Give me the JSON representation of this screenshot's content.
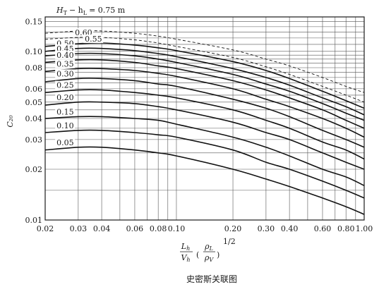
{
  "caption": "史密斯关联图",
  "chart_data": {
    "type": "line",
    "title": "",
    "xlabel": "",
    "ylabel": "C₂₀",
    "x_scale": "log",
    "y_scale": "log",
    "xlim": [
      0.02,
      1.0
    ],
    "ylim": [
      0.01,
      0.16
    ],
    "grid": true,
    "x_axis_formula": {
      "num_top": "L",
      "num_top_sub": "h",
      "den_bottom": "V",
      "den_bottom_sub": "h",
      "rho_top": "ρ",
      "rho_top_sub": "L",
      "rho_bottom": "ρ",
      "rho_bottom_sub": "V",
      "exponent": "1/2"
    },
    "x_ticks": [
      {
        "value": 0.02,
        "label": "0.02"
      },
      {
        "value": 0.03,
        "label": "0.03"
      },
      {
        "value": 0.04,
        "label": "0.04"
      },
      {
        "value": 0.06,
        "label": "0.06"
      },
      {
        "value": 0.08,
        "label": "0.08"
      },
      {
        "value": 0.1,
        "label": "0.10"
      },
      {
        "value": 0.2,
        "label": "0.20"
      },
      {
        "value": 0.3,
        "label": "0.30"
      },
      {
        "value": 0.4,
        "label": "0.40"
      },
      {
        "value": 0.6,
        "label": "0.60"
      },
      {
        "value": 0.8,
        "label": "0.80"
      },
      {
        "value": 1.0,
        "label": "1.00"
      }
    ],
    "y_ticks": [
      {
        "value": 0.01,
        "label": "0.01"
      },
      {
        "value": 0.02,
        "label": "0.02"
      },
      {
        "value": 0.03,
        "label": "0.03"
      },
      {
        "value": 0.04,
        "label": "0.04"
      },
      {
        "value": 0.05,
        "label": "0.05"
      },
      {
        "value": 0.06,
        "label": "0.06"
      },
      {
        "value": 0.08,
        "label": "0.08"
      },
      {
        "value": 0.1,
        "label": "0.10"
      },
      {
        "value": 0.15,
        "label": "0.15"
      }
    ],
    "legend_header": "H",
    "legend_header_sub": "T",
    "legend_header_minus": "− h",
    "legend_header_sub2": "L",
    "legend_header_rest": "= 0.75 m",
    "series": [
      {
        "name": "0.75 m",
        "label": "",
        "dashed": true,
        "points": [
          [
            0.02,
            0.128
          ],
          [
            0.03,
            0.132
          ],
          [
            0.04,
            0.132
          ],
          [
            0.06,
            0.128
          ],
          [
            0.08,
            0.123
          ],
          [
            0.1,
            0.118
          ],
          [
            0.2,
            0.102
          ],
          [
            0.3,
            0.09
          ],
          [
            0.4,
            0.082
          ],
          [
            0.6,
            0.07
          ],
          [
            0.8,
            0.062
          ],
          [
            1.0,
            0.057
          ]
        ]
      },
      {
        "name": "0.60",
        "label": "0.60",
        "dashed": true,
        "points": [
          [
            0.02,
            0.118
          ],
          [
            0.03,
            0.121
          ],
          [
            0.04,
            0.121
          ],
          [
            0.06,
            0.117
          ],
          [
            0.08,
            0.112
          ],
          [
            0.1,
            0.107
          ],
          [
            0.2,
            0.092
          ],
          [
            0.3,
            0.081
          ],
          [
            0.4,
            0.073
          ],
          [
            0.6,
            0.062
          ],
          [
            0.8,
            0.055
          ],
          [
            1.0,
            0.05
          ]
        ]
      },
      {
        "name": "0.55",
        "label": "0.55",
        "dashed": false,
        "points": [
          [
            0.02,
            0.107
          ],
          [
            0.03,
            0.111
          ],
          [
            0.04,
            0.112
          ],
          [
            0.06,
            0.109
          ],
          [
            0.08,
            0.105
          ],
          [
            0.1,
            0.101
          ],
          [
            0.2,
            0.087
          ],
          [
            0.3,
            0.077
          ],
          [
            0.4,
            0.069
          ],
          [
            0.6,
            0.058
          ],
          [
            0.8,
            0.051
          ],
          [
            1.0,
            0.046
          ]
        ]
      },
      {
        "name": "0.50",
        "label": "0.50",
        "dashed": false,
        "points": [
          [
            0.02,
            0.1
          ],
          [
            0.03,
            0.104
          ],
          [
            0.04,
            0.104
          ],
          [
            0.06,
            0.101
          ],
          [
            0.08,
            0.097
          ],
          [
            0.1,
            0.093
          ],
          [
            0.2,
            0.079
          ],
          [
            0.3,
            0.07
          ],
          [
            0.4,
            0.063
          ],
          [
            0.6,
            0.053
          ],
          [
            0.8,
            0.047
          ],
          [
            1.0,
            0.042
          ]
        ]
      },
      {
        "name": "0.45",
        "label": "0.45",
        "dashed": false,
        "points": [
          [
            0.02,
            0.094
          ],
          [
            0.03,
            0.097
          ],
          [
            0.04,
            0.097
          ],
          [
            0.06,
            0.094
          ],
          [
            0.08,
            0.09
          ],
          [
            0.1,
            0.086
          ],
          [
            0.2,
            0.073
          ],
          [
            0.3,
            0.064
          ],
          [
            0.4,
            0.058
          ],
          [
            0.6,
            0.049
          ],
          [
            0.8,
            0.043
          ],
          [
            1.0,
            0.039
          ]
        ]
      },
      {
        "name": "0.40",
        "label": "0.40",
        "dashed": false,
        "points": [
          [
            0.02,
            0.086
          ],
          [
            0.03,
            0.089
          ],
          [
            0.04,
            0.089
          ],
          [
            0.06,
            0.086
          ],
          [
            0.08,
            0.082
          ],
          [
            0.1,
            0.079
          ],
          [
            0.2,
            0.067
          ],
          [
            0.3,
            0.059
          ],
          [
            0.4,
            0.053
          ],
          [
            0.6,
            0.045
          ],
          [
            0.8,
            0.039
          ],
          [
            1.0,
            0.035
          ]
        ]
      },
      {
        "name": "0.35",
        "label": "0.35",
        "dashed": false,
        "points": [
          [
            0.02,
            0.076
          ],
          [
            0.03,
            0.079
          ],
          [
            0.04,
            0.079
          ],
          [
            0.06,
            0.077
          ],
          [
            0.08,
            0.074
          ],
          [
            0.1,
            0.071
          ],
          [
            0.2,
            0.06
          ],
          [
            0.3,
            0.052
          ],
          [
            0.4,
            0.047
          ],
          [
            0.6,
            0.04
          ],
          [
            0.8,
            0.035
          ],
          [
            1.0,
            0.031
          ]
        ]
      },
      {
        "name": "0.30",
        "label": "0.30",
        "dashed": false,
        "points": [
          [
            0.02,
            0.066
          ],
          [
            0.03,
            0.069
          ],
          [
            0.04,
            0.069
          ],
          [
            0.06,
            0.067
          ],
          [
            0.08,
            0.064
          ],
          [
            0.1,
            0.062
          ],
          [
            0.2,
            0.052
          ],
          [
            0.3,
            0.046
          ],
          [
            0.4,
            0.041
          ],
          [
            0.6,
            0.034
          ],
          [
            0.8,
            0.03
          ],
          [
            1.0,
            0.027
          ]
        ]
      },
      {
        "name": "0.25",
        "label": "0.25",
        "dashed": false,
        "points": [
          [
            0.02,
            0.057
          ],
          [
            0.03,
            0.059
          ],
          [
            0.04,
            0.059
          ],
          [
            0.06,
            0.057
          ],
          [
            0.08,
            0.055
          ],
          [
            0.1,
            0.053
          ],
          [
            0.2,
            0.045
          ],
          [
            0.3,
            0.039
          ],
          [
            0.4,
            0.035
          ],
          [
            0.6,
            0.029
          ],
          [
            0.8,
            0.026
          ],
          [
            1.0,
            0.023
          ]
        ]
      },
      {
        "name": "0.20",
        "label": "0.20",
        "dashed": false,
        "points": [
          [
            0.02,
            0.048
          ],
          [
            0.03,
            0.05
          ],
          [
            0.04,
            0.05
          ],
          [
            0.06,
            0.049
          ],
          [
            0.08,
            0.047
          ],
          [
            0.1,
            0.045
          ],
          [
            0.2,
            0.038
          ],
          [
            0.3,
            0.033
          ],
          [
            0.4,
            0.03
          ],
          [
            0.6,
            0.025
          ],
          [
            0.8,
            0.022
          ],
          [
            1.0,
            0.02
          ]
        ]
      },
      {
        "name": "0.15",
        "label": "0.15",
        "dashed": false,
        "points": [
          [
            0.02,
            0.04
          ],
          [
            0.03,
            0.041
          ],
          [
            0.04,
            0.041
          ],
          [
            0.06,
            0.04
          ],
          [
            0.08,
            0.039
          ],
          [
            0.1,
            0.037
          ],
          [
            0.2,
            0.031
          ],
          [
            0.3,
            0.027
          ],
          [
            0.4,
            0.024
          ],
          [
            0.6,
            0.02
          ],
          [
            0.8,
            0.018
          ],
          [
            1.0,
            0.016
          ]
        ]
      },
      {
        "name": "0.10",
        "label": "0.10",
        "dashed": false,
        "points": [
          [
            0.02,
            0.033
          ],
          [
            0.03,
            0.034
          ],
          [
            0.04,
            0.034
          ],
          [
            0.06,
            0.033
          ],
          [
            0.08,
            0.032
          ],
          [
            0.1,
            0.031
          ],
          [
            0.2,
            0.026
          ],
          [
            0.3,
            0.022
          ],
          [
            0.4,
            0.02
          ],
          [
            0.6,
            0.017
          ],
          [
            0.8,
            0.015
          ],
          [
            1.0,
            0.0135
          ]
        ]
      },
      {
        "name": "0.05",
        "label": "0.05",
        "dashed": false,
        "points": [
          [
            0.02,
            0.026
          ],
          [
            0.03,
            0.027
          ],
          [
            0.04,
            0.027
          ],
          [
            0.06,
            0.026
          ],
          [
            0.08,
            0.025
          ],
          [
            0.1,
            0.024
          ],
          [
            0.2,
            0.02
          ],
          [
            0.3,
            0.0175
          ],
          [
            0.4,
            0.0158
          ],
          [
            0.6,
            0.0135
          ],
          [
            0.8,
            0.012
          ],
          [
            1.0,
            0.0108
          ]
        ]
      }
    ]
  }
}
